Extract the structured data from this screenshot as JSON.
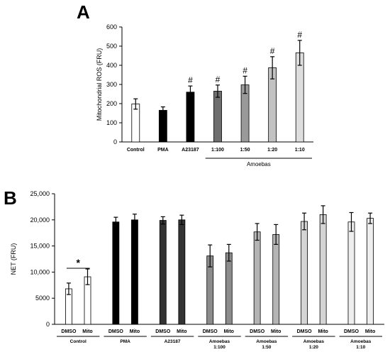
{
  "chart_data": [
    {
      "panel": "A",
      "type": "bar",
      "ylabel": "Mitochondrial ROS (FRU)",
      "ylim": [
        0,
        600
      ],
      "yticks": [
        "0",
        "100",
        "200",
        "300",
        "400",
        "500",
        "600"
      ],
      "categories": [
        "Control",
        "PMA",
        "A23187",
        "1:100",
        "1:50",
        "1:20",
        "1:10"
      ],
      "values": [
        198,
        165,
        260,
        265,
        298,
        387,
        465
      ],
      "errors": [
        27,
        18,
        32,
        32,
        45,
        58,
        65
      ],
      "significance": [
        "",
        "",
        "#",
        "#",
        "#",
        "#",
        "#"
      ],
      "colors": [
        "#ffffff",
        "#000000",
        "#000000",
        "#6e6e6e",
        "#9a9a9a",
        "#c2c2c2",
        "#dedede"
      ],
      "group_label": "Amoebas",
      "grid": false
    },
    {
      "panel": "B",
      "type": "bar",
      "ylabel": "NET (FRU)",
      "ylim": [
        0,
        25000
      ],
      "yticks": [
        "0",
        "5000",
        "10,000",
        "15,000",
        "20,000",
        "25,000"
      ],
      "groups": [
        "Control",
        "PMA",
        "A23187",
        "Amoebas\n1:100",
        "Amoebas\n1:50",
        "Amoebas\n1:20",
        "Amoebas\n1:10"
      ],
      "bar_labels": [
        "DMSO",
        "Mito"
      ],
      "values": [
        [
          6800,
          9100
        ],
        [
          19600,
          20000
        ],
        [
          19900,
          20000
        ],
        [
          13100,
          13700
        ],
        [
          17700,
          17200
        ],
        [
          19700,
          21000
        ],
        [
          19600,
          20300
        ]
      ],
      "errors": [
        [
          1100,
          1500
        ],
        [
          900,
          1100
        ],
        [
          700,
          900
        ],
        [
          2100,
          1600
        ],
        [
          1600,
          1900
        ],
        [
          1600,
          1700
        ],
        [
          1800,
          1000
        ]
      ],
      "group_colors": [
        "#ffffff",
        "#000000",
        "#333333",
        "#8c8c8c",
        "#b4b4b4",
        "#d4d4d4",
        "#eeeeee"
      ],
      "significance": {
        "group": "Control",
        "marker": "*"
      },
      "grid": false
    }
  ],
  "panel_labels": [
    "A",
    "B"
  ]
}
